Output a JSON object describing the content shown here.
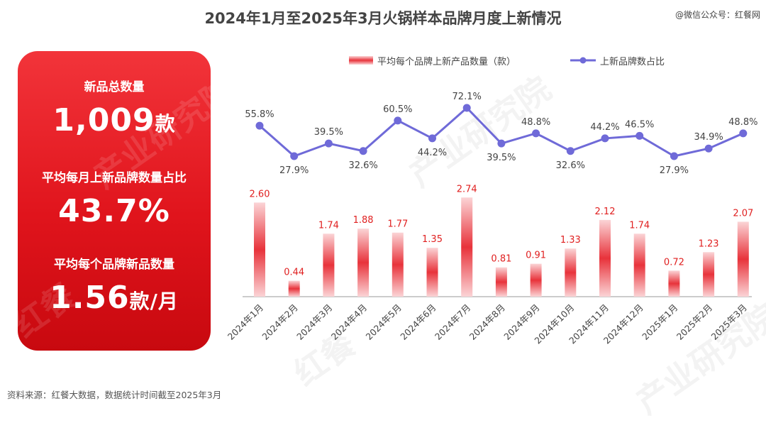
{
  "title": "2024年1月至2025年3月火锅样本品牌月度上新情况",
  "credit": "@微信公众号：红餐网",
  "panel": {
    "label1": "新品总数量",
    "value1": "1,009",
    "unit1": "款",
    "label2": "平均每月上新品牌数量占比",
    "value2": "43.7%",
    "label3": "平均每个品牌新品数量",
    "value3": "1.56",
    "unit3": "款/月"
  },
  "watermark": {
    "text1": "产业研究院",
    "text2": "红餐"
  },
  "source": "资料来源：红餐大数据，数据统计时间截至2025年3月",
  "colors": {
    "bar": "#e8333b",
    "line": "#6f6ad8",
    "bar_label": "#e02020",
    "panel": "#e0141c"
  },
  "chart_data": {
    "type": "bar",
    "categories": [
      "2024年1月",
      "2024年2月",
      "2024年3月",
      "2024年4月",
      "2024年5月",
      "2024年6月",
      "2024年7月",
      "2024年8月",
      "2024年9月",
      "2024年10月",
      "2024年11月",
      "2024年12月",
      "2025年1月",
      "2025年2月",
      "2025年3月"
    ],
    "legend_position": "top",
    "grid": false,
    "series": [
      {
        "name": "平均每个品牌上新产品数量（款）",
        "type": "bar",
        "values": [
          2.6,
          0.44,
          1.74,
          1.88,
          1.77,
          1.35,
          2.74,
          0.81,
          0.91,
          1.33,
          2.12,
          1.74,
          0.72,
          1.23,
          2.07
        ],
        "labels": [
          "2.60",
          "0.44",
          "1.74",
          "1.88",
          "1.77",
          "1.35",
          "2.74",
          "0.81",
          "0.91",
          "1.33",
          "2.12",
          "1.74",
          "0.72",
          "1.23",
          "2.07"
        ]
      },
      {
        "name": "上新品牌数占比",
        "type": "line",
        "values": [
          55.8,
          27.9,
          39.5,
          32.6,
          60.5,
          44.2,
          72.1,
          39.5,
          48.8,
          32.6,
          44.2,
          46.5,
          27.9,
          34.9,
          48.8
        ],
        "labels": [
          "55.8%",
          "27.9%",
          "39.5%",
          "32.6%",
          "60.5%",
          "44.2%",
          "72.1%",
          "39.5%",
          "48.8%",
          "32.6%",
          "44.2%",
          "46.5%",
          "27.9%",
          "34.9%",
          "48.8%"
        ]
      }
    ]
  }
}
